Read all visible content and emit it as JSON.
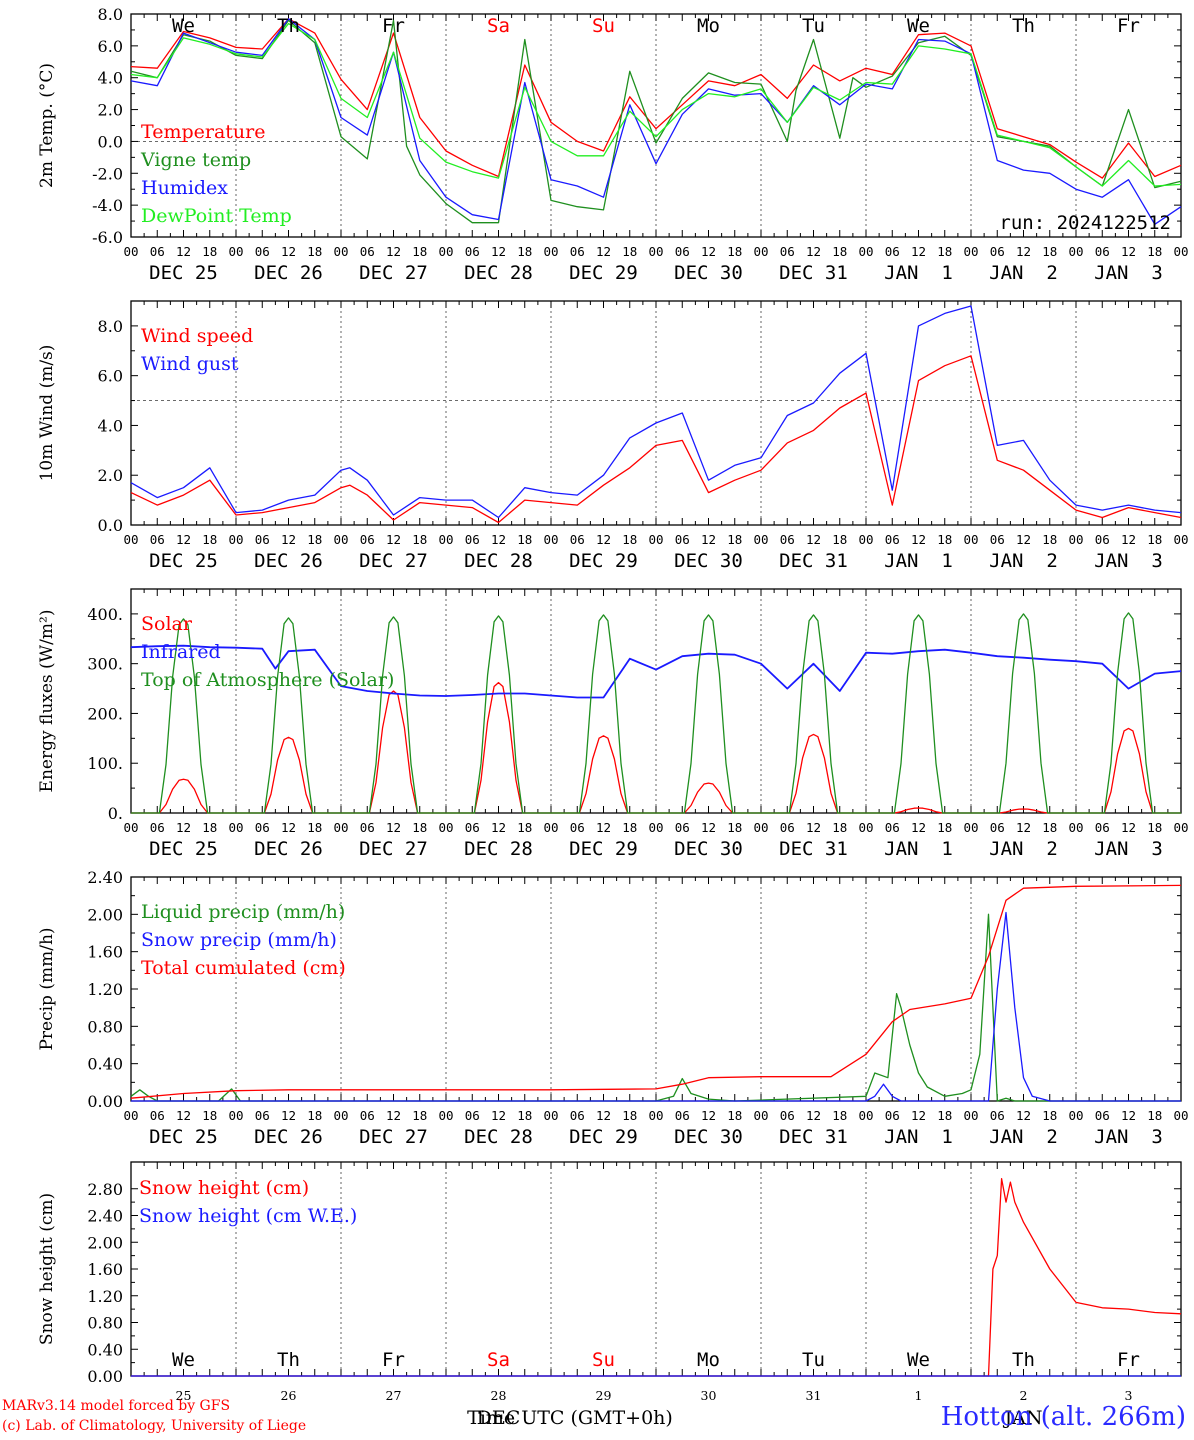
{
  "days": [
    "We",
    "Th",
    "Fr",
    "Sa",
    "Su",
    "Mo",
    "Tu",
    "We",
    "Th",
    "Fr"
  ],
  "weekend_days": [
    "Sa",
    "Su"
  ],
  "date_labels": [
    "DEC 25",
    "DEC 26",
    "DEC 27",
    "DEC 28",
    "DEC 29",
    "DEC 30",
    "DEC 31",
    "JAN  1",
    "JAN  2",
    "JAN  3"
  ],
  "hour_ticks": [
    "00",
    "06",
    "12",
    "18"
  ],
  "bottom_day_numbers": [
    "25",
    "26",
    "27",
    "28",
    "29",
    "30",
    "31",
    "1",
    "2",
    "3"
  ],
  "bottom_dec_label": "DEC",
  "bottom_jan_label": "JAN",
  "bottom_xlabel": "Time UTC (GMT+0h)",
  "run_label": "run: 2024122512",
  "footer": {
    "line1": "MARv3.14 model forced by GFS",
    "line2": "(c) Lab. of Climatology, University of Liege",
    "station": "Hotton (alt. 266m)"
  },
  "colors": {
    "red": "#ff0000",
    "green": "#1f8f1f",
    "blue": "#1a1aff",
    "lightgreen": "#22ee22",
    "grid": "#555555"
  },
  "chart_data": [
    {
      "type": "line",
      "ylabel": "2m Temp. (°C)",
      "ylim": [
        -6,
        8
      ],
      "yticks": [
        "8.0",
        "6.0",
        "4.0",
        "2.0",
        "0.0",
        "-2.0",
        "-4.0",
        "-6.0"
      ],
      "reference_line": 0,
      "x_unit": "hours since DEC 25 00 UTC",
      "series": [
        {
          "name": "Temperature",
          "color": "#ff0000",
          "x": [
            0,
            6,
            12,
            18,
            24,
            30,
            36,
            42,
            48,
            54,
            60,
            66,
            72,
            78,
            84,
            90,
            96,
            102,
            108,
            114,
            120,
            126,
            132,
            138,
            144,
            150,
            156,
            162,
            168,
            174,
            180,
            186,
            192,
            198,
            204,
            210,
            216,
            222,
            228,
            234,
            240
          ],
          "y": [
            4.7,
            4.6,
            6.9,
            6.5,
            5.9,
            5.8,
            7.7,
            6.8,
            3.9,
            2.0,
            6.8,
            1.5,
            -0.6,
            -1.5,
            -2.2,
            4.8,
            1.2,
            0.0,
            -0.6,
            2.8,
            0.8,
            2.3,
            3.8,
            3.5,
            4.2,
            2.7,
            4.8,
            3.8,
            4.6,
            4.2,
            6.7,
            6.8,
            6.0,
            0.8,
            0.3,
            -0.2,
            -1.3,
            -2.3,
            -0.1,
            -2.2,
            -1.5
          ]
        },
        {
          "name": "Vigne temp",
          "color": "#1f8f1f",
          "x": [
            0,
            6,
            12,
            18,
            24,
            30,
            36,
            42,
            48,
            54,
            60,
            63,
            66,
            72,
            78,
            84,
            90,
            96,
            102,
            108,
            114,
            120,
            126,
            132,
            138,
            144,
            150,
            152,
            156,
            162,
            165,
            168,
            174,
            180,
            186,
            192,
            198,
            204,
            210,
            216,
            222,
            228,
            234,
            240
          ],
          "y": [
            4.4,
            4.0,
            6.7,
            6.3,
            5.4,
            5.2,
            7.6,
            6.2,
            0.3,
            -1.1,
            7.6,
            -0.3,
            -2.1,
            -3.9,
            -5.1,
            -5.1,
            6.4,
            -3.7,
            -4.1,
            -4.3,
            4.4,
            -0.1,
            2.7,
            4.3,
            3.7,
            3.6,
            0.0,
            3.2,
            6.4,
            0.2,
            4.0,
            3.4,
            4.1,
            6.2,
            6.6,
            5.4,
            0.3,
            0.0,
            -0.3,
            -1.6,
            -2.8,
            2.0,
            -2.9,
            -2.5
          ]
        },
        {
          "name": "Humidex",
          "color": "#1a1aff",
          "x": [
            0,
            6,
            12,
            18,
            24,
            30,
            36,
            42,
            48,
            54,
            60,
            66,
            72,
            78,
            84,
            90,
            96,
            102,
            108,
            114,
            120,
            126,
            132,
            138,
            144,
            150,
            156,
            162,
            168,
            174,
            180,
            186,
            192,
            198,
            204,
            210,
            216,
            222,
            228,
            234,
            240
          ],
          "y": [
            3.8,
            3.5,
            6.8,
            6.2,
            5.6,
            5.4,
            7.7,
            6.4,
            1.5,
            0.4,
            5.6,
            -1.2,
            -3.5,
            -4.6,
            -4.9,
            3.7,
            -2.4,
            -2.8,
            -3.5,
            2.3,
            -1.4,
            1.7,
            3.3,
            2.9,
            3.0,
            1.2,
            3.5,
            2.3,
            3.6,
            3.3,
            6.4,
            6.3,
            5.5,
            -1.2,
            -1.8,
            -2.0,
            -3.0,
            -3.5,
            -2.4,
            -5.2,
            -4.1
          ]
        },
        {
          "name": "DewPoint Temp",
          "color": "#22ee22",
          "x": [
            0,
            6,
            12,
            18,
            24,
            30,
            36,
            42,
            48,
            54,
            60,
            66,
            72,
            78,
            84,
            90,
            96,
            102,
            108,
            114,
            120,
            126,
            132,
            138,
            144,
            150,
            156,
            162,
            168,
            174,
            180,
            186,
            192,
            198,
            204,
            210,
            216,
            222,
            228,
            234,
            240
          ],
          "y": [
            4.2,
            4.0,
            6.5,
            6.1,
            5.5,
            5.3,
            7.4,
            6.4,
            2.7,
            1.5,
            5.6,
            0.2,
            -1.3,
            -1.9,
            -2.3,
            3.4,
            0.0,
            -0.9,
            -0.9,
            1.9,
            0.3,
            2.0,
            3.0,
            2.8,
            3.3,
            1.2,
            3.4,
            2.6,
            3.7,
            3.6,
            6.0,
            5.8,
            5.5,
            0.4,
            0.0,
            -0.4,
            -1.6,
            -2.8,
            -1.2,
            -2.8,
            -2.7
          ]
        }
      ]
    },
    {
      "type": "line",
      "ylabel": "10m Wind (m/s)",
      "ylim": [
        0,
        9
      ],
      "yticks": [
        "8.0",
        "6.0",
        "4.0",
        "2.0",
        "0.0"
      ],
      "reference_line": 5,
      "series": [
        {
          "name": "Wind speed",
          "color": "#ff0000",
          "x": [
            0,
            6,
            12,
            18,
            24,
            30,
            36,
            42,
            48,
            50,
            54,
            60,
            66,
            72,
            78,
            84,
            90,
            96,
            102,
            108,
            114,
            120,
            126,
            132,
            138,
            144,
            150,
            156,
            162,
            168,
            174,
            180,
            186,
            192,
            198,
            204,
            210,
            216,
            222,
            228,
            234,
            240
          ],
          "y": [
            1.3,
            0.8,
            1.2,
            1.8,
            0.4,
            0.5,
            0.7,
            0.9,
            1.5,
            1.6,
            1.2,
            0.2,
            0.9,
            0.8,
            0.7,
            0.1,
            1.0,
            0.9,
            0.8,
            1.6,
            2.3,
            3.2,
            3.4,
            1.3,
            1.8,
            2.2,
            3.3,
            3.8,
            4.7,
            5.3,
            0.8,
            5.8,
            6.4,
            6.8,
            2.6,
            2.2,
            1.4,
            0.6,
            0.3,
            0.7,
            0.5,
            0.3
          ]
        },
        {
          "name": "Wind gust",
          "color": "#1a1aff",
          "x": [
            0,
            6,
            12,
            18,
            24,
            30,
            36,
            42,
            48,
            50,
            54,
            60,
            66,
            72,
            78,
            84,
            90,
            96,
            102,
            108,
            114,
            120,
            126,
            132,
            138,
            144,
            150,
            156,
            162,
            168,
            174,
            180,
            186,
            192,
            198,
            204,
            210,
            216,
            222,
            228,
            234,
            240
          ],
          "y": [
            1.7,
            1.1,
            1.5,
            2.3,
            0.5,
            0.6,
            1.0,
            1.2,
            2.2,
            2.3,
            1.8,
            0.4,
            1.1,
            1.0,
            1.0,
            0.3,
            1.5,
            1.3,
            1.2,
            2.0,
            3.5,
            4.1,
            4.5,
            1.8,
            2.4,
            2.7,
            4.4,
            4.9,
            6.1,
            6.9,
            1.4,
            8.0,
            8.5,
            8.8,
            3.2,
            3.4,
            1.8,
            0.8,
            0.6,
            0.8,
            0.6,
            0.5
          ]
        }
      ]
    },
    {
      "type": "line",
      "ylabel": "Energy fluxes (W/m²)",
      "ylim": [
        0,
        450
      ],
      "yticks": [
        "400.",
        "300.",
        "200.",
        "100.",
        "0."
      ],
      "series": [
        {
          "name": "Solar",
          "color": "#ff0000",
          "diurnal_peaks": [
            68,
            152,
            245,
            262,
            155,
            60,
            158,
            10,
            8,
            170
          ]
        },
        {
          "name": "Infrared",
          "color": "#1a1aff",
          "x": [
            0,
            6,
            12,
            18,
            24,
            30,
            33,
            36,
            42,
            48,
            54,
            60,
            66,
            72,
            78,
            84,
            90,
            96,
            102,
            108,
            114,
            120,
            126,
            132,
            138,
            144,
            150,
            156,
            162,
            168,
            174,
            180,
            186,
            192,
            198,
            204,
            210,
            216,
            222,
            228,
            234,
            240
          ],
          "y": [
            333,
            335,
            336,
            333,
            332,
            330,
            290,
            325,
            328,
            255,
            245,
            240,
            236,
            235,
            237,
            240,
            240,
            236,
            232,
            232,
            310,
            288,
            315,
            320,
            318,
            300,
            250,
            300,
            245,
            322,
            320,
            325,
            328,
            322,
            315,
            312,
            308,
            305,
            300,
            250,
            280,
            285
          ]
        },
        {
          "name": "Top of Atmosphere (Solar)",
          "color": "#1f8f1f",
          "diurnal_peaks": [
            390,
            392,
            394,
            396,
            398,
            398,
            398,
            398,
            400,
            402
          ]
        }
      ]
    },
    {
      "type": "line",
      "ylabel": "Precip (mm/h)",
      "ylim": [
        0,
        2.4
      ],
      "yticks": [
        "2.40",
        "2.00",
        "1.60",
        "1.20",
        "0.80",
        "0.40",
        "0.00"
      ],
      "series": [
        {
          "name": "Liquid precip (mm/h)",
          "color": "#1f8f1f",
          "x": [
            0,
            2,
            4,
            6,
            20,
            23,
            25,
            28,
            120,
            124,
            126,
            128,
            132,
            138,
            168,
            170,
            173,
            175,
            176,
            178,
            180,
            182,
            186,
            190,
            192,
            194,
            196,
            198,
            200,
            202,
            240
          ],
          "y": [
            0.05,
            0.12,
            0.05,
            0,
            0,
            0.13,
            0,
            0,
            0,
            0.05,
            0.24,
            0.08,
            0.02,
            0,
            0.05,
            0.3,
            0.25,
            1.15,
            1.0,
            0.6,
            0.3,
            0.15,
            0.05,
            0.08,
            0.12,
            0.5,
            2.0,
            0,
            0.03,
            0,
            0
          ]
        },
        {
          "name": "Snow precip (mm/h)",
          "color": "#1a1aff",
          "x": [
            0,
            168,
            170,
            172,
            174,
            176,
            196,
            198,
            200,
            202,
            204,
            206,
            210,
            240
          ],
          "y": [
            0,
            0,
            0.05,
            0.18,
            0.05,
            0,
            0,
            1.2,
            2.02,
            1.0,
            0.25,
            0.05,
            0,
            0
          ]
        },
        {
          "name": "Total cumulated (cm)",
          "color": "#ff0000",
          "x": [
            0,
            12,
            24,
            36,
            48,
            72,
            96,
            120,
            126,
            132,
            144,
            160,
            168,
            174,
            178,
            186,
            192,
            196,
            200,
            204,
            216,
            240
          ],
          "y": [
            0.03,
            0.08,
            0.11,
            0.12,
            0.12,
            0.12,
            0.12,
            0.13,
            0.18,
            0.25,
            0.26,
            0.26,
            0.5,
            0.85,
            0.98,
            1.04,
            1.1,
            1.55,
            2.15,
            2.28,
            2.3,
            2.31
          ]
        }
      ]
    },
    {
      "type": "line",
      "ylabel": "Snow height (cm)",
      "ylim": [
        0,
        3.2
      ],
      "yticks": [
        "2.80",
        "2.40",
        "2.00",
        "1.60",
        "1.20",
        "0.80",
        "0.40",
        "0.00"
      ],
      "series": [
        {
          "name": "Snow height (cm)",
          "color": "#ff0000",
          "x": [
            0,
            196,
            197,
            198,
            199,
            200,
            201,
            202,
            204,
            210,
            216,
            222,
            228,
            234,
            240
          ],
          "y": [
            0,
            0,
            1.6,
            1.8,
            2.95,
            2.6,
            2.9,
            2.6,
            2.3,
            1.6,
            1.1,
            1.02,
            1.0,
            0.95,
            0.93
          ]
        },
        {
          "name": "Snow height (cm W.E.)",
          "color": "#1a1aff",
          "x": [
            0,
            240
          ],
          "y": [
            0,
            0
          ]
        }
      ]
    }
  ]
}
